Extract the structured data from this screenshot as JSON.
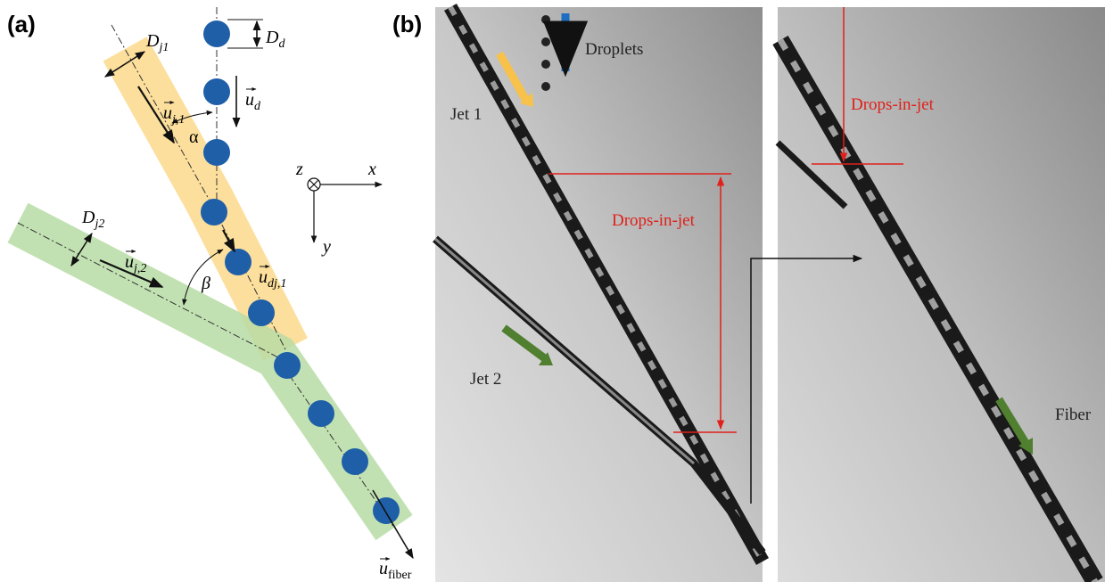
{
  "panel_a": {
    "label": "(a)",
    "D_d": {
      "symbol": "D",
      "subscript": "d"
    },
    "u_d": {
      "symbol": "u",
      "subscript": "d"
    },
    "D_j1": {
      "symbol": "D",
      "subscript": "j1"
    },
    "u_j1": {
      "symbol": "u",
      "subscript": "j,1"
    },
    "alpha": "α",
    "axis_z": "z",
    "axis_x": "x",
    "axis_y": "y",
    "D_j2": {
      "symbol": "D",
      "subscript": "j2"
    },
    "u_j2": {
      "symbol": "u",
      "subscript": "j,2"
    },
    "beta": "β",
    "u_dj1": {
      "symbol": "u",
      "subscript": "dj,1"
    },
    "u_fiber": {
      "symbol": "u",
      "subscript": "fiber"
    }
  },
  "panel_b": {
    "label": "(b)",
    "droplets": "Droplets",
    "jet1": "Jet 1",
    "jet2": "Jet 2",
    "drops_in_jet_left": "Drops-in-jet",
    "drops_in_jet_right": "Drops-in-jet",
    "fiber": "Fiber"
  }
}
